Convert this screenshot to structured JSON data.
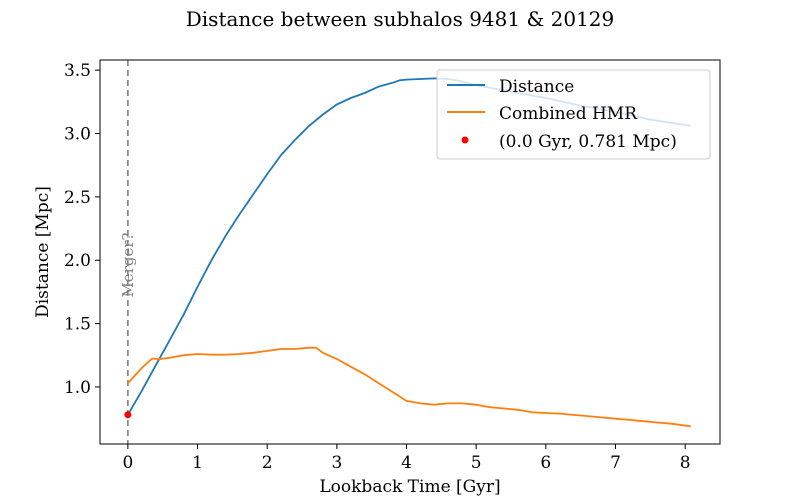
{
  "chart_data": {
    "type": "line",
    "title": "Distance between subhalos 9481 & 20129",
    "xlabel": "Lookback Time [Gyr]",
    "ylabel": "Distance [Mpc]",
    "xlim": [
      -0.4,
      8.5
    ],
    "ylim": [
      0.55,
      3.58
    ],
    "xticks": [
      0,
      1,
      2,
      3,
      4,
      5,
      6,
      7,
      8
    ],
    "yticks": [
      1.0,
      1.5,
      2.0,
      2.5,
      3.0,
      3.5
    ],
    "xtick_labels": [
      "0",
      "1",
      "2",
      "3",
      "4",
      "5",
      "6",
      "7",
      "8"
    ],
    "ytick_labels": [
      "1.0",
      "1.5",
      "2.0",
      "2.5",
      "3.0",
      "3.5"
    ],
    "grid": false,
    "legend_position": "top-right",
    "series": [
      {
        "name": "Distance",
        "color": "#1f77b4",
        "x": [
          0.0,
          0.2,
          0.4,
          0.6,
          0.8,
          1.0,
          1.2,
          1.4,
          1.6,
          1.8,
          2.0,
          2.2,
          2.4,
          2.6,
          2.8,
          3.0,
          3.2,
          3.4,
          3.6,
          3.8,
          3.9,
          4.0,
          4.2,
          4.4,
          4.6,
          4.8,
          5.0,
          5.5,
          6.0,
          6.5,
          7.0,
          7.5,
          8.08
        ],
        "y": [
          0.781,
          0.97,
          1.17,
          1.37,
          1.57,
          1.79,
          2.0,
          2.19,
          2.36,
          2.52,
          2.68,
          2.83,
          2.95,
          3.06,
          3.15,
          3.23,
          3.28,
          3.32,
          3.37,
          3.4,
          3.42,
          3.425,
          3.43,
          3.435,
          3.43,
          3.41,
          3.38,
          3.33,
          3.28,
          3.22,
          3.17,
          3.11,
          3.06
        ]
      },
      {
        "name": "Combined HMR",
        "color": "#ff7f0e",
        "x": [
          0.0,
          0.1,
          0.2,
          0.3,
          0.35,
          0.45,
          0.6,
          0.8,
          1.0,
          1.2,
          1.4,
          1.6,
          1.8,
          2.0,
          2.2,
          2.4,
          2.6,
          2.7,
          2.8,
          3.0,
          3.2,
          3.4,
          3.6,
          3.8,
          4.0,
          4.2,
          4.4,
          4.6,
          4.8,
          5.0,
          5.2,
          5.4,
          5.6,
          5.8,
          6.0,
          6.2,
          6.4,
          6.6,
          6.8,
          7.0,
          7.2,
          7.4,
          7.6,
          7.8,
          8.08
        ],
        "y": [
          1.03,
          1.09,
          1.15,
          1.2,
          1.225,
          1.22,
          1.23,
          1.25,
          1.26,
          1.255,
          1.255,
          1.26,
          1.27,
          1.285,
          1.3,
          1.3,
          1.31,
          1.31,
          1.27,
          1.22,
          1.16,
          1.1,
          1.03,
          0.96,
          0.89,
          0.87,
          0.86,
          0.87,
          0.87,
          0.86,
          0.84,
          0.83,
          0.82,
          0.8,
          0.795,
          0.79,
          0.78,
          0.77,
          0.76,
          0.75,
          0.74,
          0.73,
          0.72,
          0.71,
          0.69
        ]
      }
    ],
    "marker": {
      "label": "(0.0 Gyr, 0.781 Mpc)",
      "x": 0.0,
      "y": 0.781,
      "color": "#ff0000"
    },
    "vline": {
      "x": 0.0,
      "label": "Merger?",
      "color": "#808080"
    }
  }
}
